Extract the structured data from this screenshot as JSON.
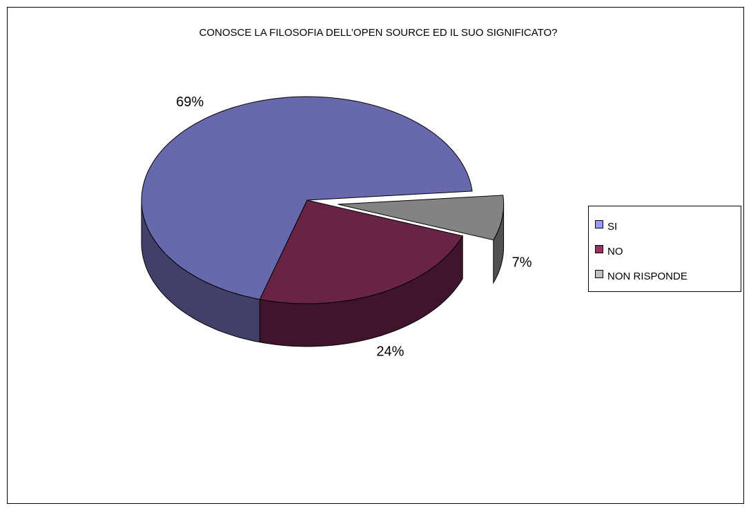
{
  "chart_data": {
    "type": "pie3d",
    "title": "CONOSCE LA FILOSOFIA DELL’OPEN SOURCE ED IL SUO SIGNIFICATO?",
    "categories": [
      "SI",
      "NO",
      "NON RISPONDE"
    ],
    "values": [
      69,
      24,
      7
    ],
    "value_labels": [
      "69%",
      "24%",
      "7%"
    ],
    "colors": [
      "#9999ff",
      "#993366",
      "#c0c0c0"
    ],
    "legend": "right"
  }
}
